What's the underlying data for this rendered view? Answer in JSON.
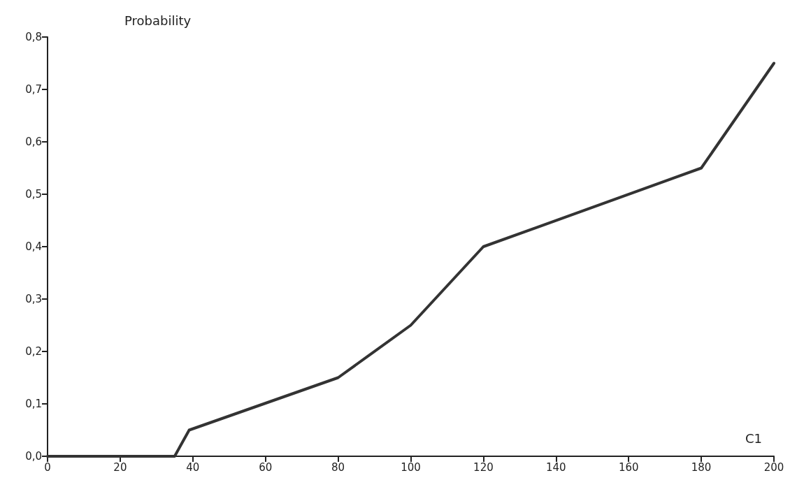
{
  "chart_data": {
    "type": "line",
    "xlabel": "C1",
    "ylabel": "Probability",
    "x": [
      0,
      35,
      39,
      80,
      100,
      120,
      180,
      200
    ],
    "series": [
      {
        "color": "#333333",
        "values": [
          0,
          0,
          0.05,
          0.15,
          0.25,
          0.4,
          0.55,
          0.75
        ]
      }
    ],
    "xlim": [
      0,
      200
    ],
    "xticks": [
      0,
      20,
      40,
      60,
      80,
      100,
      120,
      140,
      160,
      180,
      200
    ],
    "ylim": [
      0,
      0.8
    ],
    "yticks": [
      {
        "value": 0,
        "label": "0,0"
      },
      {
        "value": 0.1,
        "label": "0,1"
      },
      {
        "value": 0.2,
        "label": "0,2"
      },
      {
        "value": 0.3,
        "label": "0,3"
      },
      {
        "value": 0.4,
        "label": "0,4"
      },
      {
        "value": 0.5,
        "label": "0,5"
      },
      {
        "value": 0.6,
        "label": "0,6"
      },
      {
        "value": 0.7,
        "label": "0,7"
      },
      {
        "value": 0.8,
        "label": "0,8"
      }
    ],
    "grid": false,
    "marker": "none",
    "line_style": "solid"
  }
}
